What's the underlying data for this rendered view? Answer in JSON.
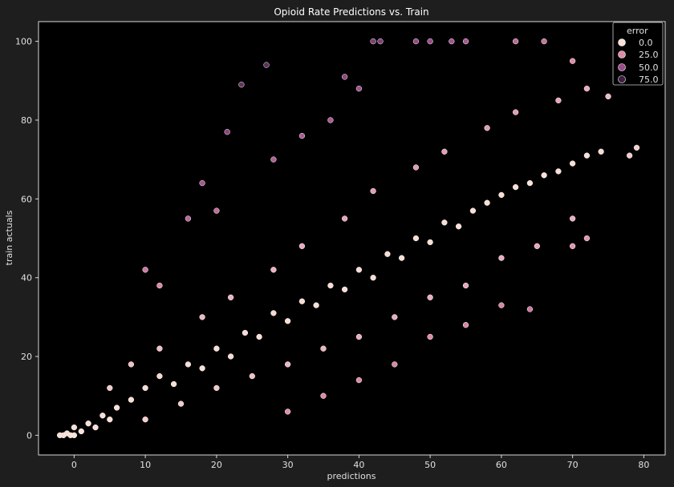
{
  "chart_data": {
    "type": "scatter",
    "title": "Opioid Rate Predictions vs. Train",
    "xlabel": "predictions",
    "ylabel": "train actuals",
    "xlim": [
      -5,
      83
    ],
    "ylim": [
      -5,
      105
    ],
    "xticks": [
      0,
      10,
      20,
      30,
      40,
      50,
      60,
      70,
      80
    ],
    "yticks": [
      0,
      20,
      40,
      60,
      80,
      100
    ],
    "grid": false,
    "legend": {
      "title": "error",
      "placement": "top-right",
      "entries": [
        {
          "label": "0.0",
          "color": "#fbe2d6"
        },
        {
          "label": "25.0",
          "color": "#e08aaa"
        },
        {
          "label": "50.0",
          "color": "#9b4c8a"
        },
        {
          "label": "75.0",
          "color": "#3f2043"
        }
      ]
    },
    "colors": {
      "background": "#000000",
      "frame": "#1e1e1e",
      "marker_edge": "#ffffff",
      "low_error": "#fbe2d6",
      "high_error": "#2d1a36"
    },
    "series": [
      {
        "hue": "error",
        "points": [
          [
            -2,
            0,
            2
          ],
          [
            -1.5,
            0,
            1.5
          ],
          [
            -1,
            0.5,
            1.5
          ],
          [
            -0.5,
            0,
            0.5
          ],
          [
            0,
            0,
            0
          ],
          [
            0,
            2,
            2
          ],
          [
            1,
            1,
            0
          ],
          [
            2,
            3,
            1
          ],
          [
            3,
            2,
            1
          ],
          [
            4,
            5,
            1
          ],
          [
            5,
            4,
            1
          ],
          [
            6,
            7,
            1
          ],
          [
            8,
            9,
            1
          ],
          [
            10,
            12,
            2
          ],
          [
            12,
            15,
            3
          ],
          [
            14,
            13,
            1
          ],
          [
            16,
            18,
            2
          ],
          [
            18,
            17,
            1
          ],
          [
            20,
            22,
            2
          ],
          [
            22,
            20,
            2
          ],
          [
            24,
            26,
            2
          ],
          [
            26,
            25,
            1
          ],
          [
            28,
            31,
            3
          ],
          [
            30,
            29,
            1
          ],
          [
            32,
            34,
            2
          ],
          [
            34,
            33,
            1
          ],
          [
            36,
            38,
            2
          ],
          [
            38,
            37,
            1
          ],
          [
            40,
            42,
            2
          ],
          [
            42,
            40,
            2
          ],
          [
            44,
            46,
            2
          ],
          [
            46,
            45,
            1
          ],
          [
            48,
            50,
            2
          ],
          [
            50,
            49,
            1
          ],
          [
            52,
            54,
            2
          ],
          [
            54,
            53,
            1
          ],
          [
            56,
            57,
            1
          ],
          [
            58,
            59,
            1
          ],
          [
            60,
            61,
            1
          ],
          [
            62,
            63,
            1
          ],
          [
            64,
            64,
            0
          ],
          [
            66,
            66,
            0
          ],
          [
            68,
            67,
            1
          ],
          [
            70,
            69,
            1
          ],
          [
            72,
            71,
            1
          ],
          [
            74,
            72,
            2
          ],
          [
            5,
            12,
            7
          ],
          [
            8,
            18,
            10
          ],
          [
            10,
            4,
            6
          ],
          [
            12,
            22,
            10
          ],
          [
            15,
            8,
            7
          ],
          [
            18,
            30,
            12
          ],
          [
            20,
            12,
            8
          ],
          [
            22,
            35,
            13
          ],
          [
            25,
            15,
            10
          ],
          [
            28,
            42,
            14
          ],
          [
            30,
            18,
            12
          ],
          [
            32,
            48,
            16
          ],
          [
            35,
            22,
            13
          ],
          [
            38,
            55,
            17
          ],
          [
            40,
            25,
            15
          ],
          [
            42,
            62,
            20
          ],
          [
            45,
            30,
            15
          ],
          [
            48,
            68,
            20
          ],
          [
            50,
            35,
            15
          ],
          [
            52,
            72,
            20
          ],
          [
            55,
            38,
            17
          ],
          [
            58,
            78,
            20
          ],
          [
            60,
            45,
            15
          ],
          [
            62,
            82,
            20
          ],
          [
            65,
            48,
            17
          ],
          [
            68,
            85,
            17
          ],
          [
            70,
            55,
            15
          ],
          [
            72,
            88,
            16
          ],
          [
            10,
            42,
            32
          ],
          [
            12,
            38,
            26
          ],
          [
            16,
            55,
            39
          ],
          [
            18,
            64,
            46
          ],
          [
            20,
            57,
            37
          ],
          [
            21.5,
            77,
            55
          ],
          [
            23.5,
            89,
            65
          ],
          [
            27,
            94,
            67
          ],
          [
            28,
            70,
            42
          ],
          [
            32,
            76,
            44
          ],
          [
            36,
            80,
            44
          ],
          [
            38,
            91,
            53
          ],
          [
            40,
            88,
            48
          ],
          [
            42,
            100,
            58
          ],
          [
            43,
            100,
            57
          ],
          [
            48,
            100,
            52
          ],
          [
            50,
            100,
            50
          ],
          [
            53,
            100,
            47
          ],
          [
            55,
            100,
            45
          ],
          [
            62,
            100,
            38
          ],
          [
            66,
            100,
            34
          ],
          [
            70,
            95,
            25
          ],
          [
            75,
            86,
            11
          ],
          [
            78,
            71,
            7
          ],
          [
            79,
            73,
            6
          ],
          [
            30,
            6,
            24
          ],
          [
            35,
            10,
            25
          ],
          [
            40,
            14,
            26
          ],
          [
            45,
            18,
            27
          ],
          [
            50,
            25,
            25
          ],
          [
            55,
            28,
            27
          ],
          [
            60,
            33,
            27
          ],
          [
            64,
            32,
            32
          ],
          [
            70,
            48,
            22
          ],
          [
            72,
            50,
            22
          ]
        ]
      }
    ]
  }
}
